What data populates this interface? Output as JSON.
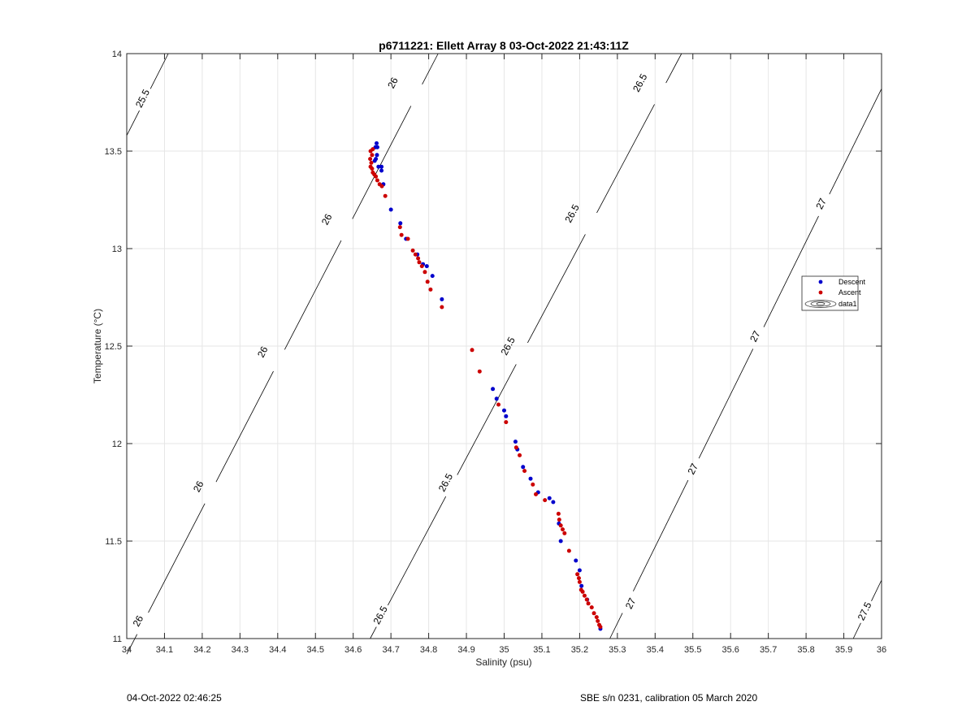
{
  "chart_data": {
    "type": "scatter",
    "title": "p6711221: Ellett Array 8 03-Oct-2022 21:43:11Z",
    "xlabel": "Salinity (psu)",
    "ylabel": "Temperature (°C)",
    "xlim": [
      34,
      36
    ],
    "ylim": [
      11,
      14
    ],
    "xticks": [
      34,
      34.1,
      34.2,
      34.3,
      34.4,
      34.5,
      34.6,
      34.7,
      34.8,
      34.9,
      35,
      35.1,
      35.2,
      35.3,
      35.4,
      35.5,
      35.6,
      35.7,
      35.8,
      35.9,
      36
    ],
    "xtick_labels": [
      "34",
      "34.1",
      "34.2",
      "34.3",
      "34.4",
      "34.5",
      "34.6",
      "34.7",
      "34.8",
      "34.9",
      "35",
      "35.1",
      "35.2",
      "35.3",
      "35.4",
      "35.5",
      "35.6",
      "35.7",
      "35.8",
      "35.9",
      "36"
    ],
    "yticks": [
      11,
      11.5,
      12,
      12.5,
      13,
      13.5,
      14
    ],
    "ytick_labels": [
      "11",
      "11.5",
      "12",
      "12.5",
      "13",
      "13.5",
      "14"
    ],
    "grid": true,
    "legend": {
      "placement": "right",
      "entries": [
        "Descent",
        "Ascent",
        "data1"
      ]
    },
    "series": [
      {
        "name": "Descent",
        "color": "#0000cc",
        "x": [
          34.662,
          34.659,
          34.664,
          34.663,
          34.66,
          34.657,
          34.675,
          34.667,
          34.675,
          34.68,
          34.7,
          34.725,
          34.74,
          34.77,
          34.785,
          34.795,
          34.81,
          34.835,
          34.97,
          34.98,
          35.0,
          35.005,
          35.03,
          35.035,
          35.05,
          35.07,
          35.09,
          35.12,
          35.13,
          35.145,
          35.15,
          35.19,
          35.2,
          35.205,
          35.22,
          35.255
        ],
        "y": [
          13.54,
          13.52,
          13.52,
          13.48,
          13.46,
          13.45,
          13.42,
          13.42,
          13.4,
          13.33,
          13.2,
          13.13,
          13.05,
          12.97,
          12.92,
          12.91,
          12.86,
          12.74,
          12.28,
          12.23,
          12.17,
          12.14,
          12.01,
          11.97,
          11.88,
          11.82,
          11.75,
          11.72,
          11.7,
          11.59,
          11.5,
          11.4,
          11.35,
          11.27,
          11.2,
          11.05
        ]
      },
      {
        "name": "Ascent",
        "color": "#cc0000",
        "x": [
          34.652,
          34.646,
          34.65,
          34.645,
          34.648,
          34.646,
          34.65,
          34.652,
          34.656,
          34.66,
          34.664,
          34.67,
          34.676,
          34.685,
          34.724,
          34.728,
          34.745,
          34.758,
          34.765,
          34.772,
          34.775,
          34.782,
          34.79,
          34.797,
          34.805,
          34.835,
          34.915,
          34.935,
          34.985,
          35.005,
          35.032,
          35.041,
          35.054,
          35.076,
          35.084,
          35.108,
          35.144,
          35.146,
          35.15,
          35.155,
          35.16,
          35.172,
          35.194,
          35.198,
          35.2,
          35.204,
          35.208,
          35.213,
          35.219,
          35.223,
          35.232,
          35.238,
          35.245,
          35.248,
          35.252,
          35.255
        ],
        "y": [
          13.51,
          13.5,
          13.48,
          13.46,
          13.44,
          13.42,
          13.41,
          13.39,
          13.38,
          13.37,
          13.35,
          13.33,
          13.32,
          13.27,
          13.11,
          13.07,
          13.05,
          12.99,
          12.97,
          12.95,
          12.93,
          12.91,
          12.88,
          12.83,
          12.79,
          12.7,
          12.48,
          12.37,
          12.2,
          12.11,
          11.98,
          11.94,
          11.86,
          11.79,
          11.74,
          11.71,
          11.64,
          11.61,
          11.58,
          11.56,
          11.54,
          11.45,
          11.33,
          11.31,
          11.29,
          11.25,
          11.24,
          11.22,
          11.2,
          11.18,
          11.16,
          11.13,
          11.11,
          11.09,
          11.07,
          11.06
        ]
      }
    ],
    "isopycnals": [
      {
        "level": "25.5",
        "x": [
          34.0,
          34.11
        ],
        "y": [
          13.58,
          14.0
        ],
        "labels": [
          {
            "text": "25.5",
            "x": 34.042,
            "y": 13.77
          }
        ]
      },
      {
        "level": "26",
        "x": [
          34.0,
          34.825
        ],
        "y": [
          10.92,
          14.0
        ],
        "labels": [
          {
            "text": "26",
            "x": 34.03,
            "y": 11.09
          },
          {
            "text": "26",
            "x": 34.19,
            "y": 11.78
          },
          {
            "text": "26",
            "x": 34.36,
            "y": 12.47
          },
          {
            "text": "26",
            "x": 34.53,
            "y": 13.15
          },
          {
            "text": "26",
            "x": 34.705,
            "y": 13.85
          }
        ]
      },
      {
        "level": "26.5",
        "x": [
          34.645,
          35.47
        ],
        "y": [
          11.0,
          14.0
        ],
        "labels": [
          {
            "text": "26.5",
            "x": 34.672,
            "y": 11.12
          },
          {
            "text": "26.5",
            "x": 34.845,
            "y": 11.8
          },
          {
            "text": "26.5",
            "x": 35.01,
            "y": 12.5
          },
          {
            "text": "26.5",
            "x": 35.18,
            "y": 13.18
          },
          {
            "text": "26.5",
            "x": 35.36,
            "y": 13.85
          }
        ]
      },
      {
        "level": "27",
        "x": [
          35.28,
          36.0
        ],
        "y": [
          11.0,
          13.82
        ],
        "labels": [
          {
            "text": "27",
            "x": 35.335,
            "y": 11.18
          },
          {
            "text": "27",
            "x": 35.5,
            "y": 11.87
          },
          {
            "text": "27",
            "x": 35.665,
            "y": 12.55
          },
          {
            "text": "27",
            "x": 35.84,
            "y": 13.23
          }
        ]
      },
      {
        "level": "27.5",
        "x": [
          35.925,
          36.0
        ],
        "y": [
          11.0,
          11.3
        ],
        "labels": [
          {
            "text": "27.5",
            "x": 35.955,
            "y": 11.14
          }
        ]
      }
    ]
  },
  "footer": {
    "left": "04-Oct-2022 02:46:25",
    "right": "SBE s/n 0231, calibration 05 March 2020"
  }
}
